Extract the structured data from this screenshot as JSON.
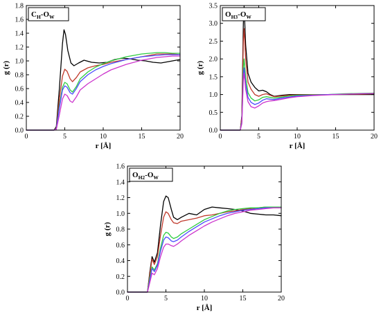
{
  "chart_data": [
    {
      "type": "line",
      "label_parts": [
        "C",
        "H",
        "-O",
        "W"
      ],
      "xlabel": "r [Å]",
      "ylabel": "g (r)",
      "xlim": [
        0,
        20
      ],
      "ylim": [
        0,
        1.8
      ],
      "xticks": [
        0,
        5,
        10,
        15,
        20
      ],
      "yticks": [
        0.0,
        0.2,
        0.4,
        0.6,
        0.8,
        1.0,
        1.2,
        1.4,
        1.6,
        1.8
      ],
      "ytick_format": 1,
      "legend": "none",
      "grid": false,
      "series": [
        {
          "color": "#000000",
          "x": [
            0,
            3.6,
            3.9,
            4.3,
            4.7,
            4.9,
            5.1,
            5.4,
            5.8,
            6.2,
            6.8,
            7.5,
            8.5,
            9.5,
            10.5,
            11.5,
            12.5,
            13.5,
            14.5,
            15.5,
            16.5,
            17.5,
            18.5,
            19.5,
            20
          ],
          "y": [
            0,
            0,
            0.05,
            0.6,
            1.25,
            1.45,
            1.38,
            1.15,
            0.97,
            0.93,
            0.97,
            1.01,
            0.98,
            0.97,
            0.98,
            1.02,
            1.04,
            1.03,
            1.01,
            1.0,
            0.98,
            0.97,
            0.99,
            1.01,
            1.02
          ]
        },
        {
          "color": "#c0392b",
          "x": [
            0,
            3.6,
            3.9,
            4.3,
            4.7,
            5.0,
            5.3,
            5.7,
            6.0,
            6.5,
            7.0,
            8.0,
            9.0,
            10.0,
            11.0,
            12.0,
            13.0,
            14.0,
            15.0,
            16.0,
            17.0,
            18.0,
            19.0,
            20
          ],
          "y": [
            0,
            0,
            0.03,
            0.45,
            0.78,
            0.88,
            0.85,
            0.74,
            0.7,
            0.76,
            0.84,
            0.9,
            0.93,
            0.95,
            0.98,
            1.0,
            1.02,
            1.04,
            1.06,
            1.08,
            1.1,
            1.1,
            1.1,
            1.09
          ]
        },
        {
          "color": "#2ecc40",
          "x": [
            0,
            3.6,
            3.9,
            4.3,
            4.7,
            5.0,
            5.3,
            5.7,
            6.0,
            6.5,
            7.0,
            8.0,
            9.0,
            10.0,
            11.0,
            12.0,
            13.0,
            14.0,
            15.0,
            16.0,
            17.0,
            18.0,
            19.0,
            20
          ],
          "y": [
            0,
            0,
            0.02,
            0.35,
            0.62,
            0.69,
            0.67,
            0.58,
            0.55,
            0.63,
            0.74,
            0.84,
            0.91,
            0.96,
            1.0,
            1.03,
            1.06,
            1.08,
            1.1,
            1.11,
            1.12,
            1.12,
            1.11,
            1.11
          ]
        },
        {
          "color": "#4a4aff",
          "x": [
            0,
            3.6,
            3.9,
            4.3,
            4.7,
            5.0,
            5.3,
            5.7,
            6.0,
            6.5,
            7.0,
            8.0,
            9.0,
            10.0,
            11.0,
            12.0,
            13.0,
            14.0,
            15.0,
            16.0,
            17.0,
            18.0,
            19.0,
            20
          ],
          "y": [
            0,
            0,
            0.02,
            0.32,
            0.58,
            0.64,
            0.62,
            0.54,
            0.52,
            0.6,
            0.7,
            0.8,
            0.87,
            0.92,
            0.96,
            0.99,
            1.02,
            1.04,
            1.06,
            1.07,
            1.08,
            1.09,
            1.09,
            1.09
          ]
        },
        {
          "color": "#cc33cc",
          "x": [
            0,
            3.6,
            3.9,
            4.3,
            4.7,
            5.0,
            5.3,
            5.7,
            6.0,
            6.5,
            7.0,
            8.0,
            9.0,
            10.0,
            11.0,
            12.0,
            13.0,
            14.0,
            15.0,
            16.0,
            17.0,
            18.0,
            19.0,
            20
          ],
          "y": [
            0,
            0,
            0.01,
            0.22,
            0.45,
            0.52,
            0.5,
            0.42,
            0.4,
            0.48,
            0.58,
            0.67,
            0.74,
            0.81,
            0.87,
            0.91,
            0.95,
            0.98,
            1.01,
            1.03,
            1.05,
            1.06,
            1.07,
            1.07
          ]
        }
      ]
    },
    {
      "type": "line",
      "label_parts": [
        "O",
        "H3",
        "-O",
        "W"
      ],
      "xlabel": "r [Å]",
      "ylabel": "g (r)",
      "xlim": [
        0,
        20
      ],
      "ylim": [
        0,
        3.5
      ],
      "xticks": [
        0,
        5,
        10,
        15,
        20
      ],
      "yticks": [
        0.0,
        0.5,
        1.0,
        1.5,
        2.0,
        2.5,
        3.0,
        3.5
      ],
      "ytick_format": 1,
      "legend": "none",
      "grid": false,
      "series": [
        {
          "color": "#000000",
          "x": [
            0,
            2.6,
            2.8,
            3.0,
            3.1,
            3.3,
            3.6,
            4.0,
            4.5,
            5.0,
            5.5,
            6.0,
            6.5,
            7.0,
            8.0,
            9.0,
            10.0,
            12.0,
            14.0,
            16.0,
            18.0,
            20
          ],
          "y": [
            0,
            0,
            0.4,
            3.0,
            3.48,
            2.4,
            1.6,
            1.35,
            1.2,
            1.1,
            1.12,
            1.08,
            1.0,
            0.95,
            0.98,
            1.0,
            1.0,
            1.0,
            1.0,
            1.0,
            1.0,
            1.0
          ]
        },
        {
          "color": "#c0392b",
          "x": [
            0,
            2.6,
            2.8,
            3.0,
            3.1,
            3.3,
            3.6,
            4.0,
            4.5,
            5.0,
            5.5,
            6.0,
            6.5,
            7.0,
            8.0,
            9.0,
            10.0,
            12.0,
            14.0,
            16.0,
            18.0,
            20
          ],
          "y": [
            0,
            0,
            0.35,
            2.5,
            2.85,
            2.0,
            1.35,
            1.15,
            1.0,
            0.95,
            1.0,
            1.02,
            0.98,
            0.94,
            0.96,
            0.98,
            0.99,
            1.0,
            1.0,
            1.01,
            1.01,
            1.02
          ]
        },
        {
          "color": "#2ecc40",
          "x": [
            0,
            2.6,
            2.8,
            3.0,
            3.1,
            3.3,
            3.6,
            4.0,
            4.5,
            5.0,
            5.5,
            6.0,
            6.5,
            7.0,
            8.0,
            9.0,
            10.0,
            12.0,
            14.0,
            16.0,
            18.0,
            20
          ],
          "y": [
            0,
            0,
            0.25,
            1.75,
            2.0,
            1.5,
            1.05,
            0.9,
            0.82,
            0.85,
            0.92,
            0.94,
            0.92,
            0.9,
            0.93,
            0.96,
            0.98,
            0.99,
            1.0,
            1.02,
            1.03,
            1.04
          ]
        },
        {
          "color": "#4a4aff",
          "x": [
            0,
            2.6,
            2.8,
            3.0,
            3.1,
            3.3,
            3.6,
            4.0,
            4.5,
            5.0,
            5.5,
            6.0,
            6.5,
            7.0,
            8.0,
            9.0,
            10.0,
            12.0,
            14.0,
            16.0,
            18.0,
            20
          ],
          "y": [
            0,
            0,
            0.22,
            1.55,
            1.75,
            1.3,
            0.92,
            0.78,
            0.72,
            0.76,
            0.84,
            0.88,
            0.87,
            0.86,
            0.9,
            0.93,
            0.96,
            0.98,
            1.0,
            1.01,
            1.02,
            1.03
          ]
        },
        {
          "color": "#cc33cc",
          "x": [
            0,
            2.6,
            2.8,
            3.0,
            3.1,
            3.3,
            3.6,
            4.0,
            4.5,
            5.0,
            5.5,
            6.0,
            6.5,
            7.0,
            8.0,
            9.0,
            10.0,
            12.0,
            14.0,
            16.0,
            18.0,
            20
          ],
          "y": [
            0,
            0,
            0.18,
            1.4,
            1.6,
            1.15,
            0.8,
            0.66,
            0.62,
            0.68,
            0.76,
            0.8,
            0.82,
            0.83,
            0.87,
            0.91,
            0.94,
            0.97,
            0.99,
            1.01,
            1.02,
            1.03
          ]
        }
      ]
    },
    {
      "type": "line",
      "label_parts": [
        "O",
        "H2",
        "-O",
        "W"
      ],
      "xlabel": "r [Å]",
      "ylabel": "g (r)",
      "xlim": [
        0,
        20
      ],
      "ylim": [
        0,
        1.6
      ],
      "xticks": [
        0,
        5,
        10,
        15,
        20
      ],
      "yticks": [
        0.0,
        0.2,
        0.4,
        0.6,
        0.8,
        1.0,
        1.2,
        1.4,
        1.6
      ],
      "ytick_format": 1,
      "legend": "none",
      "grid": false,
      "series": [
        {
          "color": "#000000",
          "x": [
            0,
            2.6,
            2.9,
            3.2,
            3.5,
            3.9,
            4.3,
            4.7,
            5.0,
            5.3,
            5.7,
            6.0,
            6.5,
            7.0,
            8.0,
            9.0,
            10.0,
            11.0,
            12.0,
            13.0,
            14.0,
            15.0,
            16.0,
            17.0,
            18.0,
            19.0,
            20
          ],
          "y": [
            0,
            0,
            0.25,
            0.45,
            0.38,
            0.5,
            0.85,
            1.15,
            1.22,
            1.2,
            1.05,
            0.95,
            0.92,
            0.95,
            1.0,
            0.98,
            1.05,
            1.08,
            1.07,
            1.06,
            1.05,
            1.03,
            1.0,
            0.99,
            0.98,
            0.98,
            0.97
          ]
        },
        {
          "color": "#c0392b",
          "x": [
            0,
            2.6,
            2.9,
            3.2,
            3.5,
            3.9,
            4.3,
            4.7,
            5.0,
            5.3,
            5.7,
            6.0,
            6.5,
            7.0,
            8.0,
            9.0,
            10.0,
            11.0,
            12.0,
            13.0,
            14.0,
            15.0,
            16.0,
            17.0,
            18.0,
            19.0,
            20
          ],
          "y": [
            0,
            0,
            0.22,
            0.42,
            0.35,
            0.45,
            0.72,
            0.95,
            1.02,
            1.0,
            0.92,
            0.88,
            0.87,
            0.9,
            0.92,
            0.94,
            0.97,
            0.98,
            1.0,
            1.02,
            1.03,
            1.05,
            1.06,
            1.07,
            1.08,
            1.08,
            1.08
          ]
        },
        {
          "color": "#2ecc40",
          "x": [
            0,
            2.6,
            2.9,
            3.2,
            3.5,
            3.9,
            4.3,
            4.7,
            5.0,
            5.3,
            5.7,
            6.0,
            6.5,
            7.0,
            8.0,
            9.0,
            10.0,
            11.0,
            12.0,
            13.0,
            14.0,
            15.0,
            16.0,
            17.0,
            18.0,
            19.0,
            20
          ],
          "y": [
            0,
            0,
            0.18,
            0.32,
            0.28,
            0.36,
            0.56,
            0.72,
            0.76,
            0.75,
            0.7,
            0.68,
            0.7,
            0.74,
            0.8,
            0.86,
            0.92,
            0.96,
            1.0,
            1.03,
            1.05,
            1.06,
            1.07,
            1.07,
            1.08,
            1.08,
            1.08
          ]
        },
        {
          "color": "#4a4aff",
          "x": [
            0,
            2.6,
            2.9,
            3.2,
            3.5,
            3.9,
            4.3,
            4.7,
            5.0,
            5.3,
            5.7,
            6.0,
            6.5,
            7.0,
            8.0,
            9.0,
            10.0,
            11.0,
            12.0,
            13.0,
            14.0,
            15.0,
            16.0,
            17.0,
            18.0,
            19.0,
            20
          ],
          "y": [
            0,
            0,
            0.15,
            0.3,
            0.26,
            0.34,
            0.52,
            0.66,
            0.7,
            0.69,
            0.65,
            0.64,
            0.66,
            0.7,
            0.77,
            0.83,
            0.89,
            0.93,
            0.97,
            1.0,
            1.02,
            1.04,
            1.05,
            1.06,
            1.07,
            1.07,
            1.07
          ]
        },
        {
          "color": "#cc33cc",
          "x": [
            0,
            2.6,
            2.9,
            3.2,
            3.5,
            3.9,
            4.3,
            4.7,
            5.0,
            5.3,
            5.7,
            6.0,
            6.5,
            7.0,
            8.0,
            9.0,
            10.0,
            11.0,
            12.0,
            13.0,
            14.0,
            15.0,
            16.0,
            17.0,
            18.0,
            19.0,
            20
          ],
          "y": [
            0,
            0,
            0.12,
            0.24,
            0.22,
            0.3,
            0.45,
            0.57,
            0.61,
            0.61,
            0.59,
            0.58,
            0.61,
            0.65,
            0.72,
            0.78,
            0.84,
            0.89,
            0.93,
            0.97,
            1.0,
            1.02,
            1.04,
            1.05,
            1.06,
            1.07,
            1.07
          ]
        }
      ]
    }
  ]
}
